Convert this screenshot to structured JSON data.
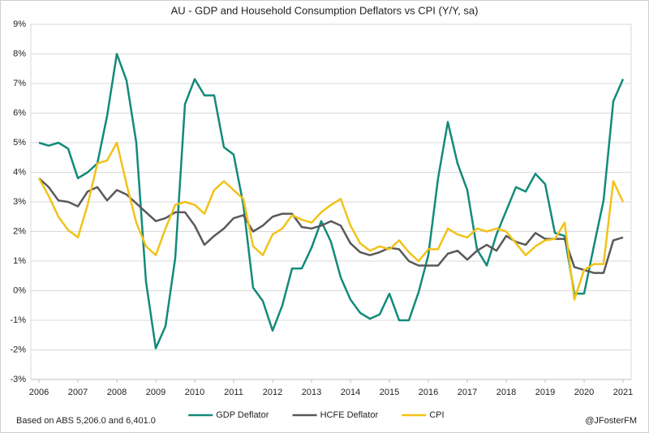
{
  "chart_data": {
    "type": "line",
    "title": "AU - GDP and Household Consumption Deflators vs CPI (Y/Y, sa)",
    "x": [
      2006,
      2006.25,
      2006.5,
      2006.75,
      2007,
      2007.25,
      2007.5,
      2007.75,
      2008,
      2008.25,
      2008.5,
      2008.75,
      2009,
      2009.25,
      2009.5,
      2009.75,
      2010,
      2010.25,
      2010.5,
      2010.75,
      2011,
      2011.25,
      2011.5,
      2011.75,
      2012,
      2012.25,
      2012.5,
      2012.75,
      2013,
      2013.25,
      2013.5,
      2013.75,
      2014,
      2014.25,
      2014.5,
      2014.75,
      2015,
      2015.25,
      2015.5,
      2015.75,
      2016,
      2016.25,
      2016.5,
      2016.75,
      2017,
      2017.25,
      2017.5,
      2017.75,
      2018,
      2018.25,
      2018.5,
      2018.75,
      2019,
      2019.25,
      2019.5,
      2019.75,
      2020,
      2020.25,
      2020.5,
      2020.75,
      2021
    ],
    "series": [
      {
        "name": "GDP Deflator",
        "color": "#138a7a",
        "values": [
          5.0,
          4.9,
          5.0,
          4.8,
          3.8,
          4.0,
          4.3,
          5.9,
          8.0,
          7.1,
          5.0,
          0.3,
          -1.95,
          -1.2,
          1.1,
          6.3,
          7.15,
          6.6,
          6.6,
          4.85,
          4.6,
          2.9,
          0.1,
          -0.35,
          -1.35,
          -0.5,
          0.75,
          0.75,
          1.45,
          2.35,
          1.65,
          0.45,
          -0.3,
          -0.75,
          -0.95,
          -0.8,
          -0.1,
          -1.0,
          -1.0,
          -0.05,
          1.2,
          3.8,
          5.7,
          4.3,
          3.4,
          1.4,
          0.85,
          1.9,
          2.7,
          3.5,
          3.35,
          3.95,
          3.6,
          1.95,
          1.85,
          -0.1,
          -0.1,
          1.5,
          3.05,
          6.4,
          7.15
        ]
      },
      {
        "name": "HCFE Deflator",
        "color": "#595959",
        "values": [
          3.8,
          3.5,
          3.05,
          3.0,
          2.85,
          3.35,
          3.5,
          3.05,
          3.4,
          3.25,
          2.95,
          2.65,
          2.35,
          2.45,
          2.65,
          2.65,
          2.2,
          1.55,
          1.85,
          2.1,
          2.45,
          2.55,
          2.0,
          2.2,
          2.5,
          2.6,
          2.6,
          2.15,
          2.1,
          2.2,
          2.35,
          2.2,
          1.6,
          1.3,
          1.2,
          1.3,
          1.45,
          1.4,
          1.0,
          0.85,
          0.85,
          0.85,
          1.25,
          1.35,
          1.05,
          1.35,
          1.55,
          1.35,
          1.85,
          1.65,
          1.55,
          1.95,
          1.75,
          1.75,
          1.75,
          0.8,
          0.7,
          0.6,
          0.6,
          1.7,
          1.8
        ]
      },
      {
        "name": "CPI",
        "color": "#f2c218",
        "values": [
          3.8,
          3.2,
          2.5,
          2.05,
          1.8,
          2.9,
          4.3,
          4.4,
          5.0,
          3.6,
          2.3,
          1.5,
          1.2,
          2.1,
          2.9,
          3.0,
          2.9,
          2.6,
          3.4,
          3.7,
          3.4,
          3.1,
          1.5,
          1.2,
          1.9,
          2.1,
          2.55,
          2.4,
          2.3,
          2.65,
          2.9,
          3.1,
          2.2,
          1.6,
          1.35,
          1.5,
          1.4,
          1.7,
          1.3,
          1.0,
          1.4,
          1.4,
          2.1,
          1.9,
          1.8,
          2.1,
          2.0,
          2.1,
          2.0,
          1.6,
          1.2,
          1.5,
          1.7,
          1.75,
          2.3,
          -0.3,
          0.7,
          0.9,
          0.9,
          3.7,
          3.0
        ]
      }
    ],
    "xlim": [
      2006,
      2021
    ],
    "xticks": [
      2006,
      2007,
      2008,
      2009,
      2010,
      2011,
      2012,
      2013,
      2014,
      2015,
      2016,
      2017,
      2018,
      2019,
      2020,
      2021
    ],
    "ylim": [
      -3,
      9
    ],
    "yticks": [
      {
        "value": -3,
        "label": "-3%"
      },
      {
        "value": -2,
        "label": "-2%"
      },
      {
        "value": -1,
        "label": "-1%"
      },
      {
        "value": 0,
        "label": "0%"
      },
      {
        "value": 1,
        "label": "1%"
      },
      {
        "value": 2,
        "label": "2%"
      },
      {
        "value": 3,
        "label": "3%"
      },
      {
        "value": 4,
        "label": "4%"
      },
      {
        "value": 5,
        "label": "5%"
      },
      {
        "value": 6,
        "label": "6%"
      },
      {
        "value": 7,
        "label": "7%"
      },
      {
        "value": 8,
        "label": "8%"
      },
      {
        "value": 9,
        "label": "9%"
      }
    ],
    "grid": true,
    "legend": "bottom",
    "source": "Based on ABS 5,206.0 and 6,401.0",
    "credit": "@JFosterFM"
  }
}
